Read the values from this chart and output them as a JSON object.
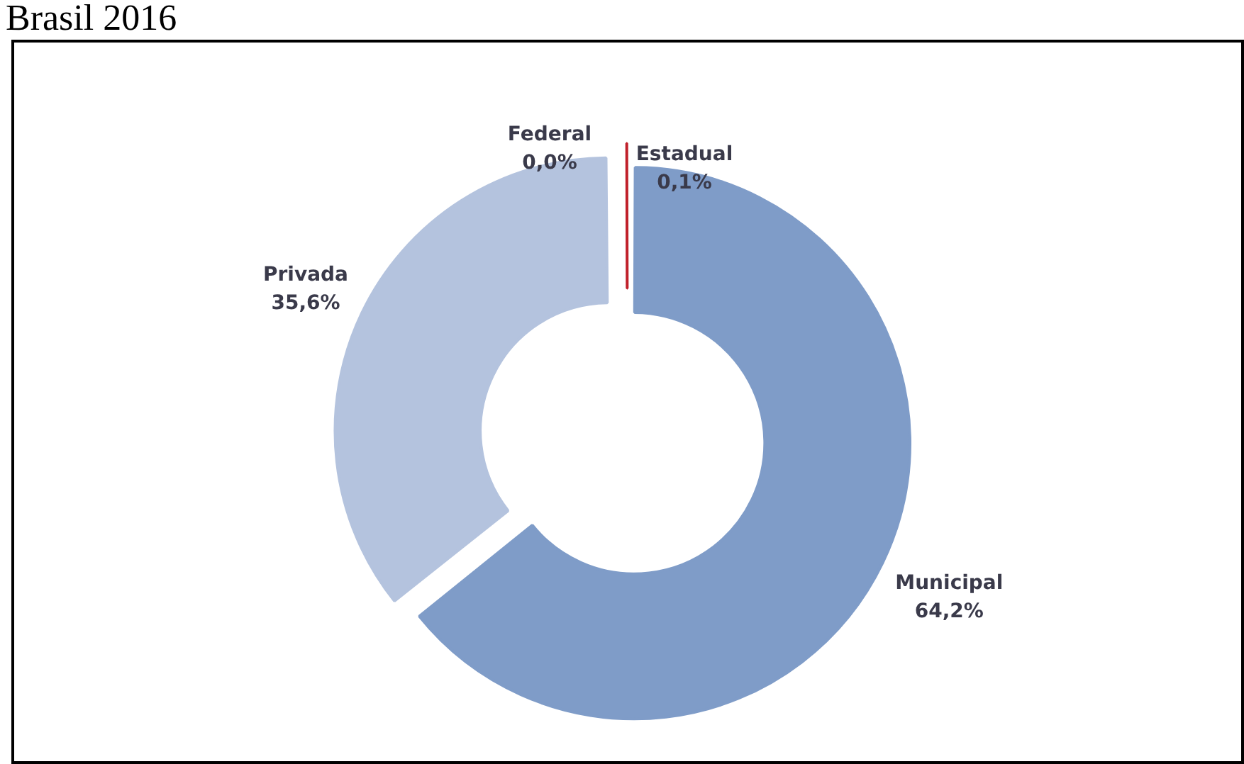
{
  "chart_data": {
    "type": "donut",
    "title": "Brasil 2016",
    "categories": [
      "Municipal",
      "Privada",
      "Federal",
      "Estadual"
    ],
    "values": [
      64.2,
      35.6,
      0.0,
      0.1
    ],
    "colors": [
      "#7f9cc8",
      "#b4c3de",
      "#c0202a",
      "#c0202a"
    ],
    "value_labels": [
      "64,2%",
      "35,6%",
      "0,0%",
      "0,1%"
    ],
    "legend": false
  }
}
